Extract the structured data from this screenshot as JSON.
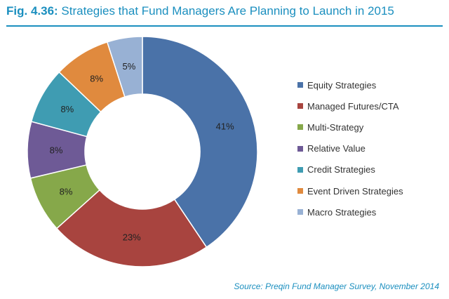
{
  "header": {
    "fig_label": "Fig. 4.36:",
    "title_text": "Strategies that Fund Managers Are Planning to Launch in 2015"
  },
  "chart_data": {
    "type": "pie",
    "donut": true,
    "title": "Strategies that Fund Managers Are Planning to Launch in 2015",
    "categories": [
      "Equity Strategies",
      "Managed Futures/CTA",
      "Multi-Strategy",
      "Relative Value",
      "Credit Strategies",
      "Event Driven Strategies",
      "Macro Strategies"
    ],
    "values": [
      41,
      23,
      8,
      8,
      8,
      8,
      5
    ],
    "value_labels": [
      "41%",
      "23%",
      "8%",
      "8%",
      "8%",
      "8%",
      "5%"
    ],
    "colors": [
      "#4a72a8",
      "#a8443f",
      "#86a84a",
      "#6e5a96",
      "#3f9cb2",
      "#e08a3e",
      "#98b1d4"
    ],
    "legend_position": "right"
  },
  "footer": {
    "source": "Source: Preqin Fund Manager Survey, November 2014"
  }
}
